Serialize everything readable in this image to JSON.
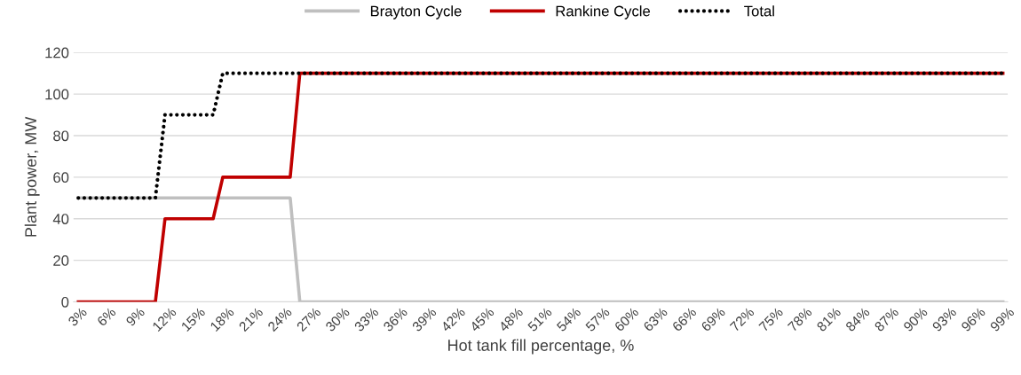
{
  "chart_data": {
    "type": "line",
    "xlabel": "Hot tank fill percentage, %",
    "ylabel": "Plant power, MW",
    "categories": [
      "3%",
      null,
      null,
      "6%",
      null,
      null,
      "9%",
      null,
      null,
      "12%",
      null,
      null,
      "15%",
      null,
      null,
      "18%",
      null,
      null,
      "21%",
      null,
      null,
      "24%",
      null,
      null,
      "27%",
      null,
      null,
      "30%",
      null,
      null,
      "33%",
      null,
      null,
      "36%",
      null,
      null,
      "39%",
      null,
      null,
      "42%",
      null,
      null,
      "45%",
      null,
      null,
      "48%",
      null,
      null,
      "51%",
      null,
      null,
      "54%",
      null,
      null,
      "57%",
      null,
      null,
      "60%",
      null,
      null,
      "63%",
      null,
      null,
      "66%",
      null,
      null,
      "69%",
      null,
      null,
      "72%",
      null,
      null,
      "75%",
      null,
      null,
      "78%",
      null,
      null,
      "81%",
      null,
      null,
      "84%",
      null,
      null,
      "87%",
      null,
      null,
      "90%",
      null,
      null,
      "93%",
      null,
      null,
      "96%",
      null,
      null,
      "99%"
    ],
    "series": [
      {
        "name": "Brayton Cycle",
        "color": "#bfbfbf",
        "line_style": "solid",
        "values": [
          50,
          50,
          50,
          50,
          50,
          50,
          50,
          50,
          50,
          50,
          50,
          50,
          50,
          50,
          50,
          50,
          50,
          50,
          50,
          50,
          50,
          50,
          50,
          0,
          0,
          0,
          0,
          0,
          0,
          0,
          0,
          0,
          0,
          0,
          0,
          0,
          0,
          0,
          0,
          0,
          0,
          0,
          0,
          0,
          0,
          0,
          0,
          0,
          0,
          0,
          0,
          0,
          0,
          0,
          0,
          0,
          0,
          0,
          0,
          0,
          0,
          0,
          0,
          0,
          0,
          0,
          0,
          0,
          0,
          0,
          0,
          0,
          0,
          0,
          0,
          0,
          0,
          0,
          0,
          0,
          0,
          0,
          0,
          0,
          0,
          0,
          0,
          0,
          0,
          0,
          0,
          0,
          0,
          0,
          0,
          0,
          0
        ]
      },
      {
        "name": "Rankine Cycle",
        "color": "#c00000",
        "line_style": "solid",
        "values": [
          0,
          0,
          0,
          0,
          0,
          0,
          0,
          0,
          0,
          40,
          40,
          40,
          40,
          40,
          40,
          60,
          60,
          60,
          60,
          60,
          60,
          60,
          60,
          110,
          110,
          110,
          110,
          110,
          110,
          110,
          110,
          110,
          110,
          110,
          110,
          110,
          110,
          110,
          110,
          110,
          110,
          110,
          110,
          110,
          110,
          110,
          110,
          110,
          110,
          110,
          110,
          110,
          110,
          110,
          110,
          110,
          110,
          110,
          110,
          110,
          110,
          110,
          110,
          110,
          110,
          110,
          110,
          110,
          110,
          110,
          110,
          110,
          110,
          110,
          110,
          110,
          110,
          110,
          110,
          110,
          110,
          110,
          110,
          110,
          110,
          110,
          110,
          110,
          110,
          110,
          110,
          110,
          110,
          110,
          110,
          110,
          110
        ]
      },
      {
        "name": "Total",
        "color": "#000000",
        "line_style": "dotted",
        "values": [
          50,
          50,
          50,
          50,
          50,
          50,
          50,
          50,
          50,
          90,
          90,
          90,
          90,
          90,
          90,
          110,
          110,
          110,
          110,
          110,
          110,
          110,
          110,
          110,
          110,
          110,
          110,
          110,
          110,
          110,
          110,
          110,
          110,
          110,
          110,
          110,
          110,
          110,
          110,
          110,
          110,
          110,
          110,
          110,
          110,
          110,
          110,
          110,
          110,
          110,
          110,
          110,
          110,
          110,
          110,
          110,
          110,
          110,
          110,
          110,
          110,
          110,
          110,
          110,
          110,
          110,
          110,
          110,
          110,
          110,
          110,
          110,
          110,
          110,
          110,
          110,
          110,
          110,
          110,
          110,
          110,
          110,
          110,
          110,
          110,
          110,
          110,
          110,
          110,
          110,
          110,
          110,
          110,
          110,
          110,
          110,
          110
        ]
      }
    ],
    "ylim": [
      0,
      120
    ],
    "yticks": [
      0,
      20,
      40,
      60,
      80,
      100,
      120
    ],
    "grid": "y",
    "legend": "top",
    "marker": "none"
  }
}
